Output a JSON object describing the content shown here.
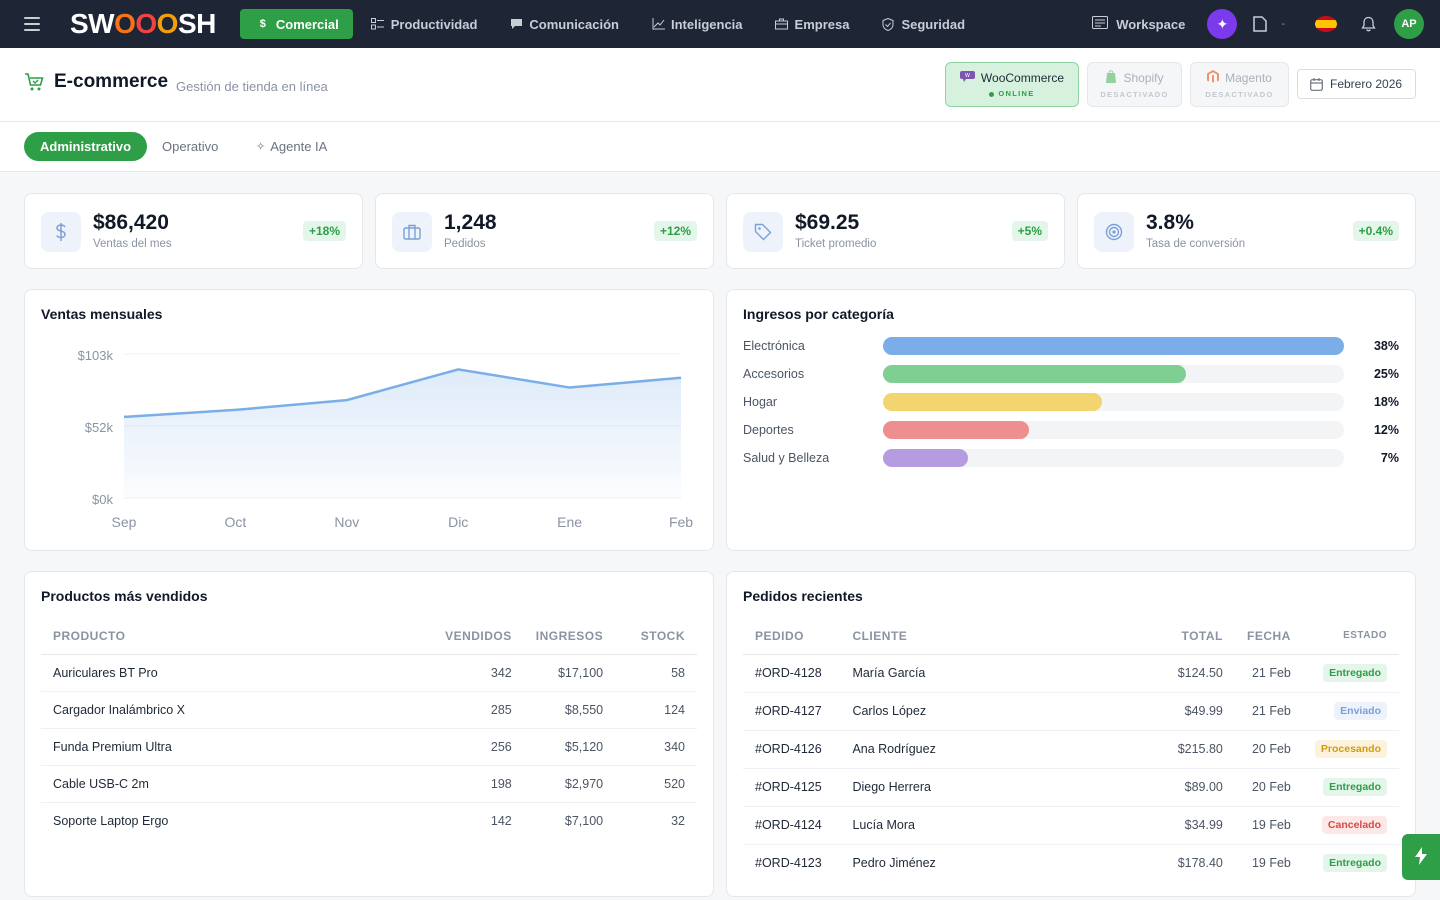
{
  "nav": {
    "logo": {
      "s": "SW",
      "o1": "O",
      "o2": "O",
      "o3": "O",
      "end": "SH"
    },
    "items": [
      {
        "label": "Comercial",
        "icon": "dollar-icon"
      },
      {
        "label": "Productividad",
        "icon": "checklist-icon"
      },
      {
        "label": "Comunicación",
        "icon": "chat-icon"
      },
      {
        "label": "Inteligencia",
        "icon": "chart-line-icon"
      },
      {
        "label": "Empresa",
        "icon": "briefcase-icon"
      },
      {
        "label": "Seguridad",
        "icon": "shield-icon"
      }
    ],
    "workspace": "Workspace",
    "dash": "-",
    "avatar": "AP"
  },
  "header": {
    "title": "E-commerce",
    "subtitle": "Gestión de tienda en línea",
    "platforms": [
      {
        "name": "WooCommerce",
        "status": "ONLINE"
      },
      {
        "name": "Shopify",
        "status": "DESACTIVADO"
      },
      {
        "name": "Magento",
        "status": "DESACTIVADO"
      }
    ],
    "date": "Febrero 2026"
  },
  "tabs": [
    "Administrativo",
    "Operativo",
    "Agente IA"
  ],
  "kpis": [
    {
      "value": "$86,420",
      "label": "Ventas del mes",
      "change": "+18%",
      "icon": "dollar-icon"
    },
    {
      "value": "1,248",
      "label": "Pedidos",
      "change": "+12%",
      "icon": "box-icon"
    },
    {
      "value": "$69.25",
      "label": "Ticket promedio",
      "change": "+5%",
      "icon": "tag-icon"
    },
    {
      "value": "3.8%",
      "label": "Tasa de conversión",
      "change": "+0.4%",
      "icon": "target-icon"
    }
  ],
  "sales_chart": {
    "title": "Ventas mensuales",
    "y_ticks": [
      "$103k",
      "$52k",
      "$0k"
    ],
    "x_ticks": [
      "Sep",
      "Oct",
      "Nov",
      "Dic",
      "Ene",
      "Feb"
    ]
  },
  "chart_data": {
    "type": "area",
    "categories": [
      "Sep",
      "Oct",
      "Nov",
      "Dic",
      "Ene",
      "Feb"
    ],
    "values": [
      58,
      63,
      70,
      92,
      79,
      86
    ],
    "ylim": [
      0,
      103
    ],
    "xlabel": "",
    "ylabel": "",
    "color": "#7baee8"
  },
  "categories": {
    "title": "Ingresos por categoría",
    "items": [
      {
        "label": "Electrónica",
        "pct": "38%",
        "value": 1.0,
        "color": "#7baee8"
      },
      {
        "label": "Accesorios",
        "pct": "25%",
        "value": 0.658,
        "color": "#7fcf92"
      },
      {
        "label": "Hogar",
        "pct": "18%",
        "value": 0.474,
        "color": "#f2d56e"
      },
      {
        "label": "Deportes",
        "pct": "12%",
        "value": 0.316,
        "color": "#ef8e8e"
      },
      {
        "label": "Salud y Belleza",
        "pct": "7%",
        "value": 0.184,
        "color": "#b59be0"
      }
    ]
  },
  "top_products": {
    "title": "Productos más vendidos",
    "headers": [
      "PRODUCTO",
      "VENDIDOS",
      "INGRESOS",
      "STOCK"
    ],
    "rows": [
      [
        "Auriculares BT Pro",
        "342",
        "$17,100",
        "58"
      ],
      [
        "Cargador Inalámbrico X",
        "285",
        "$8,550",
        "124"
      ],
      [
        "Funda Premium Ultra",
        "256",
        "$5,120",
        "340"
      ],
      [
        "Cable USB-C 2m",
        "198",
        "$2,970",
        "520"
      ],
      [
        "Soporte Laptop Ergo",
        "142",
        "$7,100",
        "32"
      ]
    ]
  },
  "recent_orders": {
    "title": "Pedidos recientes",
    "headers": [
      "PEDIDO",
      "CLIENTE",
      "TOTAL",
      "FECHA",
      "ESTADO"
    ],
    "rows": [
      [
        "#ORD-4128",
        "María García",
        "$124.50",
        "21 Feb",
        "Entregado"
      ],
      [
        "#ORD-4127",
        "Carlos López",
        "$49.99",
        "21 Feb",
        "Enviado"
      ],
      [
        "#ORD-4126",
        "Ana Rodríguez",
        "$215.80",
        "20 Feb",
        "Procesando"
      ],
      [
        "#ORD-4125",
        "Diego Herrera",
        "$89.00",
        "20 Feb",
        "Entregado"
      ],
      [
        "#ORD-4124",
        "Lucía Mora",
        "$34.99",
        "19 Feb",
        "Cancelado"
      ],
      [
        "#ORD-4123",
        "Pedro Jiménez",
        "$178.40",
        "19 Feb",
        "Entregado"
      ]
    ],
    "status_colors": {
      "Entregado": [
        "#e4f6ea",
        "#2e9e47"
      ],
      "Enviado": [
        "#eef2fb",
        "#7b9fd8"
      ],
      "Procesando": [
        "#fdf3dc",
        "#d39a12"
      ],
      "Cancelado": [
        "#fde8e8",
        "#d94848"
      ]
    }
  }
}
